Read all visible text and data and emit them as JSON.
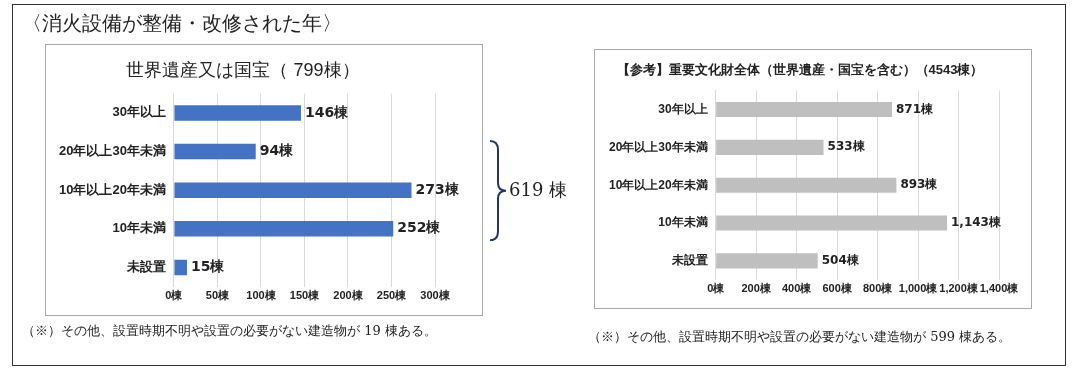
{
  "chart_data": [
    {
      "type": "bar",
      "orientation": "horizontal",
      "title": "世界遺産又は国宝（ 799棟）",
      "categories": [
        "30年以上",
        "20年以上30年未満",
        "10年以上20年未満",
        "10年未満",
        "未設置"
      ],
      "values": [
        146,
        94,
        273,
        252,
        15
      ],
      "color": "#4472c4",
      "value_labels": [
        "146棟",
        "94棟",
        "273棟",
        "252棟",
        "15棟"
      ],
      "xlim": [
        0,
        300
      ],
      "xticks": [
        {
          "value": 0,
          "label": "0棟"
        },
        {
          "value": 50,
          "label": "50棟"
        },
        {
          "value": 100,
          "label": "100棟"
        },
        {
          "value": 150,
          "label": "150棟"
        },
        {
          "value": 200,
          "label": "200棟"
        },
        {
          "value": 250,
          "label": "250棟"
        },
        {
          "value": 300,
          "label": "300棟"
        }
      ],
      "grid": "x",
      "legend": false,
      "annotations": [
        "〈消火設備が整備・改修された年〉",
        "619 棟",
        "（※）その他、設置時期不明や設置の必要がない建造物が 19 棟ある。"
      ]
    },
    {
      "type": "bar",
      "orientation": "horizontal",
      "title": "【参考】重要文化財全体（世界遺産・国宝を含む）（4543棟）",
      "categories": [
        "30年以上",
        "20年以上30年未満",
        "10年以上20年未満",
        "10年未満",
        "未設置"
      ],
      "values": [
        871,
        533,
        893,
        1143,
        504
      ],
      "color": "#bfbfbf",
      "value_labels": [
        "871棟",
        "533棟",
        "893棟",
        "1,143棟",
        "504棟"
      ],
      "xlim": [
        0,
        1400
      ],
      "xticks": [
        {
          "value": 0,
          "label": "0棟"
        },
        {
          "value": 200,
          "label": "200棟"
        },
        {
          "value": 400,
          "label": "400棟"
        },
        {
          "value": 600,
          "label": "600棟"
        },
        {
          "value": 800,
          "label": "800棟"
        },
        {
          "value": 1000,
          "label": "1,000棟"
        },
        {
          "value": 1200,
          "label": "1,200棟"
        },
        {
          "value": 1400,
          "label": "1,400棟"
        }
      ],
      "grid": "x",
      "legend": false,
      "annotations": [
        "（※）その他、設置時期不明や設置の必要がない建造物が 599 棟ある。"
      ]
    }
  ]
}
